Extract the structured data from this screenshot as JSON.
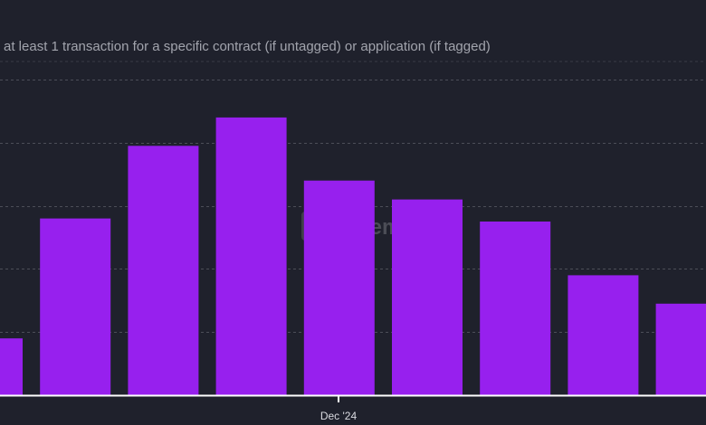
{
  "subtitle": "at least 1 transaction for a specific contract (if untagged) or application (if tagged)",
  "watermark": {
    "text": "Artemis"
  },
  "colors": {
    "background": "#1f212c",
    "bar": "#9720ee",
    "grid": "#4c4e58",
    "axis": "#ffffff",
    "text": "#d9dae0"
  },
  "chart_data": {
    "type": "bar",
    "x_tick_labels": [
      "Dec '24"
    ],
    "values": [
      18,
      56,
      79,
      88,
      68,
      62,
      55,
      38,
      29
    ],
    "ylim": [
      0,
      100
    ],
    "grid": true,
    "legend": "none"
  }
}
